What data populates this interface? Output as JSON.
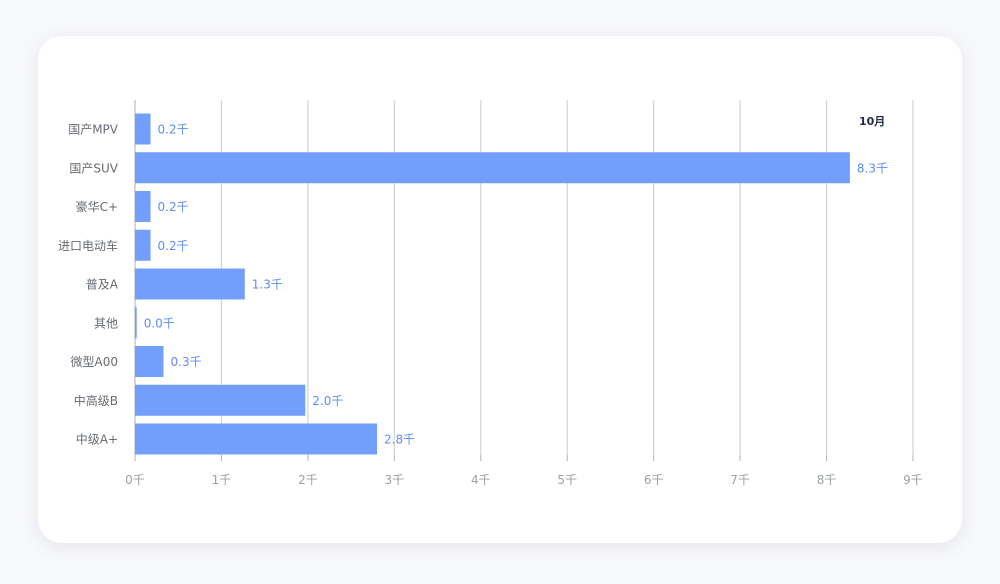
{
  "chart_data": {
    "type": "bar",
    "orientation": "horizontal",
    "period_label": "10月",
    "categories": [
      "国产MPV",
      "国产SUV",
      "豪华C+",
      "进口电动车",
      "普及A",
      "其他",
      "微型A00",
      "中高级B",
      "中级A+"
    ],
    "values": [
      0.18,
      8.27,
      0.18,
      0.18,
      1.27,
      0.02,
      0.33,
      1.97,
      2.8
    ],
    "value_labels": [
      "0.2千",
      "8.3千",
      "0.2千",
      "0.2千",
      "1.3千",
      "0.0千",
      "0.3千",
      "2.0千",
      "2.8千"
    ],
    "xlim": [
      0,
      9
    ],
    "x_ticks": [
      0,
      1,
      2,
      3,
      4,
      5,
      6,
      7,
      8,
      9
    ],
    "x_tick_labels": [
      "0千",
      "1千",
      "2千",
      "3千",
      "4千",
      "5千",
      "6千",
      "7千",
      "8千",
      "9千"
    ],
    "xlabel": "",
    "ylabel": "",
    "grid": true,
    "bar_color": "#739ffc",
    "value_label_color": "#5e8ef7"
  }
}
